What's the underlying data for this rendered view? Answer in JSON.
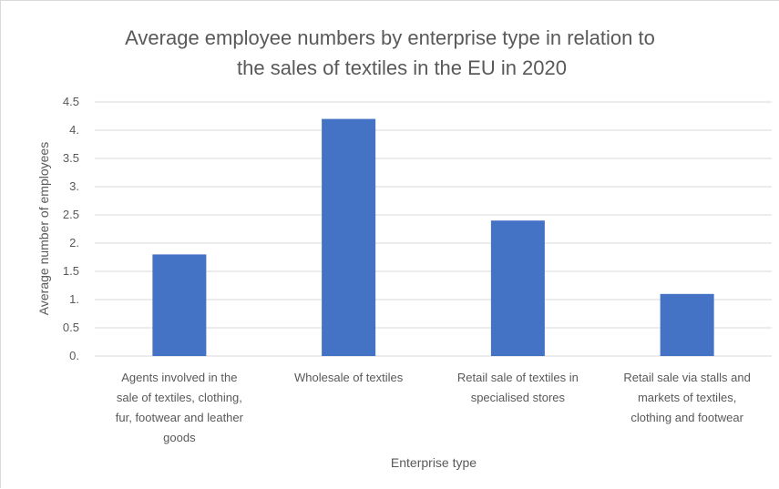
{
  "chart_data": {
    "type": "bar",
    "title": "Average employee numbers by enterprise type in relation to the sales of textiles in the EU in 2020",
    "title_lines": [
      "Average employee numbers by enterprise type in relation to",
      "the sales of textiles in the EU in 2020"
    ],
    "xlabel": "Enterprise type",
    "ylabel": "Average number of employees",
    "categories": [
      "Agents involved in the sale of textiles, clothing, fur, footwear and leather goods",
      "Wholesale of textiles",
      "Retail sale of textiles in specialised stores",
      "Retail sale via stalls and markets of textiles, clothing and footwear"
    ],
    "category_lines": [
      [
        "Agents involved in the",
        "sale of textiles, clothing,",
        "fur, footwear and leather",
        "goods"
      ],
      [
        "Wholesale of textiles"
      ],
      [
        "Retail sale of textiles in",
        "specialised stores"
      ],
      [
        "Retail sale via stalls and",
        "markets of textiles,",
        "clothing and footwear"
      ]
    ],
    "values": [
      1.8,
      4.2,
      2.4,
      1.1
    ],
    "ylim": [
      0,
      4.5
    ],
    "yticks": [
      0,
      0.5,
      1,
      1.5,
      2,
      2.5,
      3,
      3.5,
      4,
      4.5
    ],
    "ytick_labels": [
      "0.",
      "0.5",
      "1.",
      "1.5",
      "2.",
      "2.5",
      "3.",
      "3.5",
      "4.",
      "4.5"
    ],
    "grid": true,
    "legend": "none",
    "bar_color": "#4472c4"
  }
}
